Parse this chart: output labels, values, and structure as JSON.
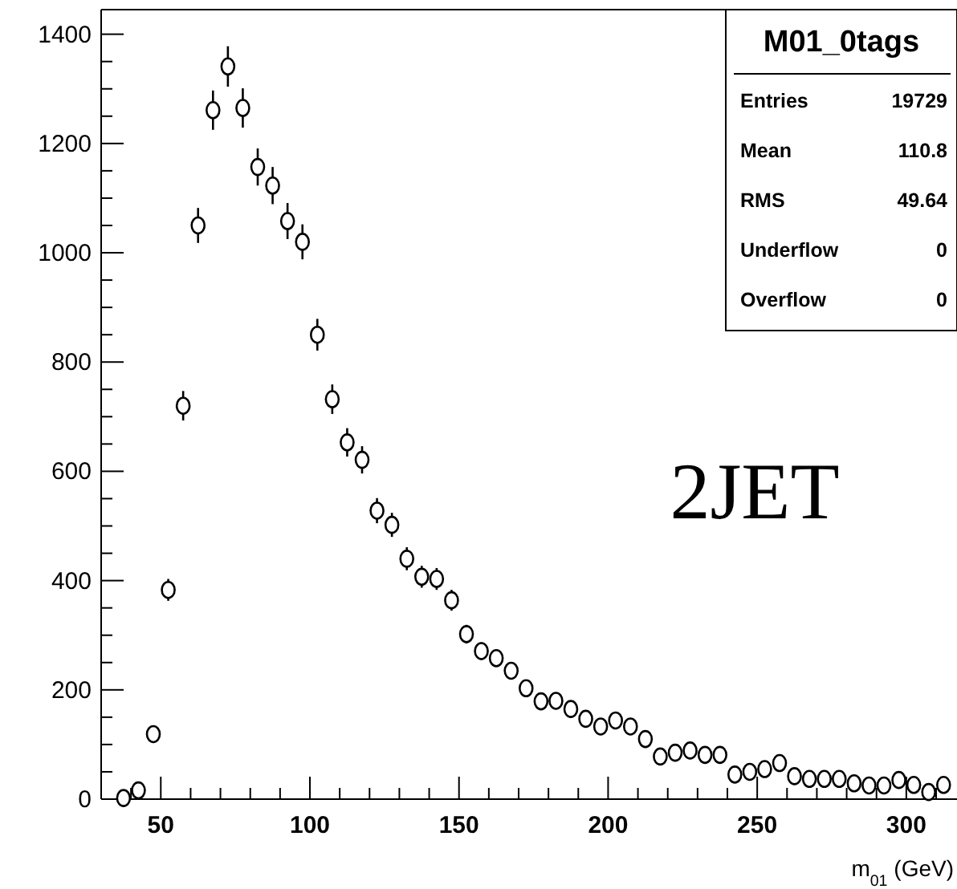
{
  "chart_data": {
    "type": "scatter",
    "title": "M01_0tags",
    "xlabel": "m$_{01}$ (GeV)",
    "annotations": [
      "2JET",
      "Entries",
      "19729",
      "Mean",
      "110.8",
      "RMS",
      "49.64",
      "Underflow",
      "0",
      "Overflow",
      "0"
    ],
    "x": [
      37.5,
      42.5,
      47.5,
      52.5,
      57.5,
      62.5,
      67.5,
      72.5,
      77.5,
      82.5,
      87.5,
      92.5,
      97.5,
      102.5,
      107.5,
      112.5,
      117.5,
      122.5,
      127.5,
      132.5,
      137.5,
      142.5,
      147.5,
      152.5,
      157.5,
      162.5,
      167.5,
      172.5,
      177.5,
      182.5,
      187.5,
      192.5,
      197.5,
      202.5,
      207.5,
      212.5,
      217.5,
      222.5,
      227.5,
      232.5,
      237.5,
      242.5,
      247.5,
      252.5,
      257.5,
      262.5,
      267.5,
      272.5,
      277.5,
      282.5,
      287.5,
      292.5,
      297.5,
      302.5,
      307.5,
      312.5
    ],
    "values": [
      2,
      16,
      119,
      383,
      720,
      1050,
      1261,
      1341,
      1265,
      1157,
      1123,
      1058,
      1020,
      850,
      732,
      653,
      621,
      528,
      502,
      440,
      407,
      403,
      364,
      302,
      271,
      258,
      235,
      203,
      179,
      180,
      165,
      147,
      133,
      144,
      133,
      110,
      78,
      85,
      89,
      81,
      81,
      45,
      50,
      55,
      66,
      42,
      37,
      37,
      37,
      29,
      25,
      25,
      35,
      26,
      13,
      26
    ],
    "errors": [
      null,
      null,
      null,
      20,
      27,
      32,
      36,
      37,
      36,
      34,
      34,
      33,
      32,
      29,
      27,
      26,
      25,
      23,
      22,
      21,
      20,
      20,
      19,
      17,
      16,
      16,
      null,
      null,
      null,
      null,
      null,
      null,
      null,
      null,
      null,
      null,
      null,
      null,
      null,
      null,
      null,
      null,
      null,
      null,
      null,
      null,
      null,
      null,
      null,
      null,
      null,
      null,
      null,
      null,
      null,
      null
    ],
    "color": "#000000",
    "marker": "circle",
    "xlim": [
      30,
      317
    ],
    "xticks": [
      {
        "value": 40,
        "label": null
      },
      50,
      {
        "value": 60,
        "label": null
      },
      {
        "value": 70,
        "label": null
      },
      {
        "value": 80,
        "label": null
      },
      {
        "value": 90,
        "label": null
      },
      100,
      {
        "value": 110,
        "label": null
      },
      {
        "value": 120,
        "label": null
      },
      {
        "value": 130,
        "label": null
      },
      {
        "value": 140,
        "label": null
      },
      150,
      {
        "value": 160,
        "label": null
      },
      {
        "value": 170,
        "label": null
      },
      {
        "value": 180,
        "label": null
      },
      {
        "value": 190,
        "label": null
      },
      200,
      {
        "value": 210,
        "label": null
      },
      {
        "value": 220,
        "label": null
      },
      {
        "value": 230,
        "label": null
      },
      {
        "value": 240,
        "label": null
      },
      250,
      {
        "value": 260,
        "label": null
      },
      {
        "value": 270,
        "label": null
      },
      {
        "value": 280,
        "label": null
      },
      {
        "value": 290,
        "label": null
      },
      300,
      {
        "value": 310,
        "label": null
      }
    ],
    "ylim": [
      0,
      1445
    ],
    "yticks": [
      0,
      {
        "value": 50,
        "label": null
      },
      {
        "value": 100,
        "label": null
      },
      {
        "value": 150,
        "label": null
      },
      200,
      {
        "value": 250,
        "label": null
      },
      {
        "value": 300,
        "label": null
      },
      {
        "value": 350,
        "label": null
      },
      400,
      {
        "value": 450,
        "label": null
      },
      {
        "value": 500,
        "label": null
      },
      {
        "value": 550,
        "label": null
      },
      600,
      {
        "value": 650,
        "label": null
      },
      {
        "value": 700,
        "label": null
      },
      {
        "value": 750,
        "label": null
      },
      800,
      {
        "value": 850,
        "label": null
      },
      {
        "value": 900,
        "label": null
      },
      {
        "value": 950,
        "label": null
      },
      1000,
      {
        "value": 1050,
        "label": null
      },
      {
        "value": 1100,
        "label": null
      },
      {
        "value": 1150,
        "label": null
      },
      1200,
      {
        "value": 1250,
        "label": null
      },
      {
        "value": 1300,
        "label": null
      },
      {
        "value": 1350,
        "label": null
      },
      1400
    ],
    "grid": false
  }
}
